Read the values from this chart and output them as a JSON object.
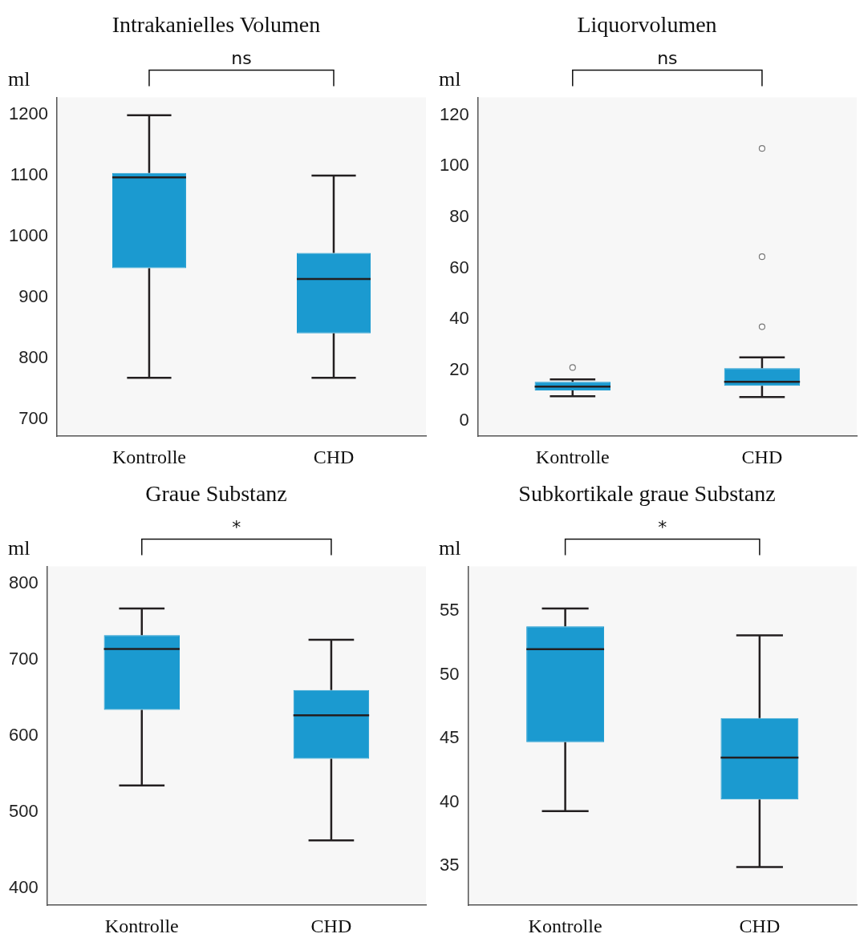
{
  "chart_data": [
    {
      "type": "box",
      "title": "Intrakanielles Volumen",
      "ylabel": "ml",
      "categories": [
        "Kontrolle",
        "CHD"
      ],
      "ylim": [
        672,
        1228
      ],
      "yticks": [
        700,
        800,
        900,
        1000,
        1100,
        1200
      ],
      "annotations": [
        "ns"
      ],
      "series": [
        {
          "color": "#1b9ad0",
          "boxes": [
            {
              "low": 768,
              "q1": 948,
              "median": 1097,
              "q3": 1104,
              "high": 1199
            },
            {
              "low": 768,
              "q1": 841,
              "median": 930,
              "q3": 973,
              "high": 1100
            }
          ]
        }
      ]
    },
    {
      "type": "box",
      "title": "Liquorvolumen",
      "ylabel": "ml",
      "categories": [
        "Kontrolle",
        "CHD"
      ],
      "ylim": [
        -6,
        127
      ],
      "yticks": [
        0,
        20,
        40,
        60,
        80,
        100,
        120
      ],
      "annotations": [
        "ns"
      ],
      "series": [
        {
          "color": "#1b9ad0",
          "boxes": [
            {
              "low": 9.7,
              "q1": 12,
              "median": 13.5,
              "q3": 15.4,
              "high": 16.3,
              "outliers": [
                21
              ]
            },
            {
              "low": 9.4,
              "q1": 13.8,
              "median": 15.4,
              "q3": 20.7,
              "high": 25,
              "outliers": [
                37,
                64.5,
                107
              ]
            }
          ]
        }
      ]
    },
    {
      "type": "box",
      "title": "Graue Substanz",
      "ylabel": "ml",
      "categories": [
        "Kontrolle",
        "CHD"
      ],
      "ylim": [
        378,
        822
      ],
      "yticks": [
        400,
        500,
        600,
        700,
        800
      ],
      "annotations": [
        "*"
      ],
      "series": [
        {
          "color": "#1b9ad0",
          "boxes": [
            {
              "low": 535,
              "q1": 634,
              "median": 714,
              "q3": 732,
              "high": 767
            },
            {
              "low": 463,
              "q1": 570,
              "median": 627,
              "q3": 660,
              "high": 726
            }
          ]
        }
      ]
    },
    {
      "type": "box",
      "title": "Subkortikale graue Substanz",
      "ylabel": "ml",
      "categories": [
        "Kontrolle",
        "CHD"
      ],
      "ylim": [
        31.9,
        58.5
      ],
      "yticks": [
        35,
        40,
        45,
        50,
        55
      ],
      "annotations": [
        "*"
      ],
      "series": [
        {
          "color": "#1b9ad0",
          "boxes": [
            {
              "low": 39.3,
              "q1": 44.7,
              "median": 52,
              "q3": 53.8,
              "high": 55.2
            },
            {
              "low": 34.9,
              "q1": 40.2,
              "median": 43.5,
              "q3": 46.6,
              "high": 53.1
            }
          ]
        }
      ]
    }
  ]
}
